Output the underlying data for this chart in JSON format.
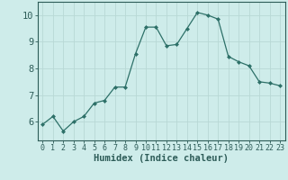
{
  "x": [
    0,
    1,
    2,
    3,
    4,
    5,
    6,
    7,
    8,
    9,
    10,
    11,
    12,
    13,
    14,
    15,
    16,
    17,
    18,
    19,
    20,
    21,
    22,
    23
  ],
  "y": [
    5.9,
    6.2,
    5.65,
    6.0,
    6.2,
    6.7,
    6.8,
    7.3,
    7.3,
    8.55,
    9.55,
    9.55,
    8.85,
    8.9,
    9.5,
    10.1,
    10.0,
    9.85,
    8.45,
    8.25,
    8.1,
    7.5,
    7.45,
    7.35
  ],
  "line_color": "#2d7068",
  "marker": "D",
  "marker_size": 2.0,
  "bg_color": "#ceecea",
  "grid_color": "#b8d8d5",
  "xlabel": "Humidex (Indice chaleur)",
  "ylim": [
    5.3,
    10.5
  ],
  "xlim": [
    -0.5,
    23.5
  ],
  "yticks": [
    6,
    7,
    8,
    9,
    10
  ],
  "xticks": [
    0,
    1,
    2,
    3,
    4,
    5,
    6,
    7,
    8,
    9,
    10,
    11,
    12,
    13,
    14,
    15,
    16,
    17,
    18,
    19,
    20,
    21,
    22,
    23
  ],
  "tick_color": "#2d5c58",
  "label_fontsize": 7.5,
  "tick_fontsize": 6.0,
  "ytick_fontsize": 7.5
}
